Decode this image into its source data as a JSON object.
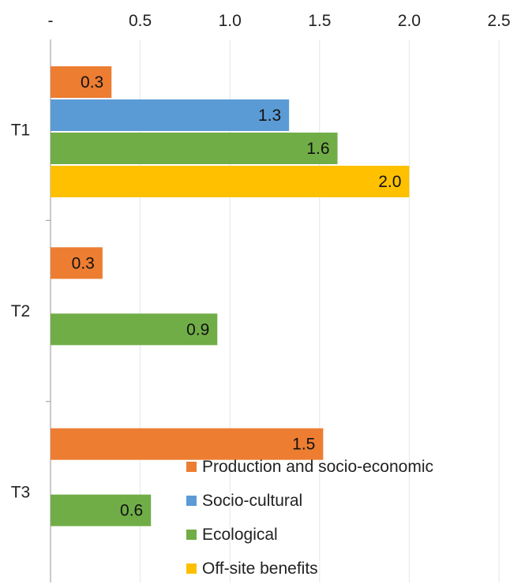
{
  "chart_data": {
    "type": "bar",
    "orientation": "horizontal",
    "categories": [
      "T1",
      "T2",
      "T3"
    ],
    "x_ticks": [
      "-",
      "0.5",
      "1.0",
      "1.5",
      "2.0",
      "2.5"
    ],
    "xlim": [
      0,
      2.5
    ],
    "grid": true,
    "legend_position": "bottom-right",
    "series": [
      {
        "name": "Production and socio-economic",
        "color": "#ED7D31",
        "values": [
          0.34,
          0.29,
          1.52
        ],
        "labels": [
          "0.3",
          "0.3",
          "1.5"
        ]
      },
      {
        "name": "Socio-cultural",
        "color": "#5B9BD5",
        "values": [
          1.33,
          null,
          null
        ],
        "labels": [
          "1.3",
          "",
          ""
        ]
      },
      {
        "name": "Ecological",
        "color": "#70AD47",
        "values": [
          1.6,
          0.93,
          0.56
        ],
        "labels": [
          "1.6",
          "0.9",
          "0.6"
        ]
      },
      {
        "name": "Off-site benefits",
        "color": "#FFC000",
        "values": [
          2.0,
          null,
          null
        ],
        "labels": [
          "2.0",
          "",
          ""
        ]
      }
    ]
  }
}
